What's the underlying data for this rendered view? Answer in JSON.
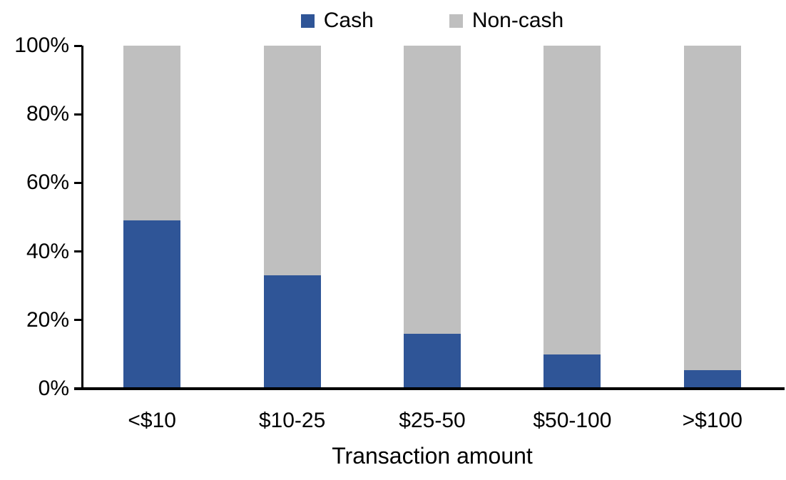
{
  "chart_data": {
    "type": "bar",
    "stacked": true,
    "percent_stacked": true,
    "title": "",
    "xlabel": "Transaction amount",
    "ylabel": "",
    "categories": [
      "<$10",
      "$10-25",
      "$25-50",
      "$50-100",
      ">$100"
    ],
    "series": [
      {
        "name": "Cash",
        "color": "#2F5597",
        "values": [
          49,
          33,
          16,
          10,
          5.5
        ]
      },
      {
        "name": "Non-cash",
        "color": "#BFBFBF",
        "values": [
          51,
          67,
          84,
          90,
          94.5
        ]
      }
    ],
    "ylim": [
      0,
      100
    ],
    "yticks": [
      0,
      20,
      40,
      60,
      80,
      100
    ],
    "ytick_labels": [
      "0%",
      "20%",
      "40%",
      "60%",
      "80%",
      "100%"
    ],
    "legend_position": "top",
    "grid": false,
    "axis_color": "#000000"
  }
}
